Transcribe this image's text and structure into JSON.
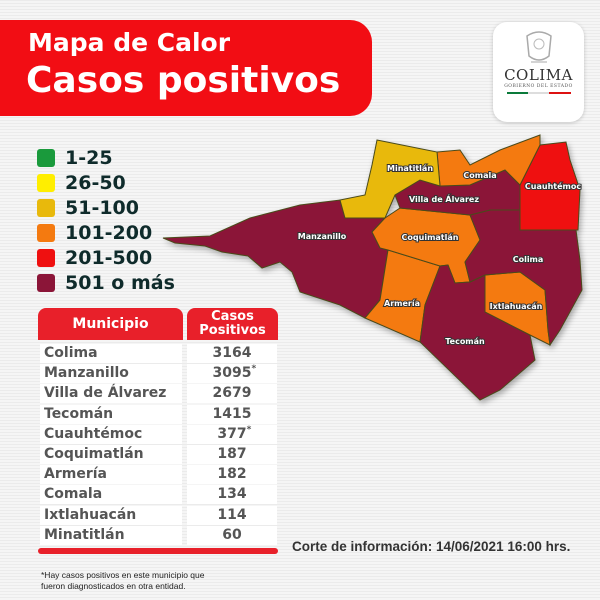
{
  "header": {
    "line1": "Mapa de Calor",
    "line2": "Casos positivos"
  },
  "logo": {
    "name": "COLIMA",
    "subtitle": "GOBIERNO DEL ESTADO"
  },
  "legend": [
    {
      "label": "1-25",
      "color": "#1a9a3c"
    },
    {
      "label": "26-50",
      "color": "#ffee00"
    },
    {
      "label": "51-100",
      "color": "#e8b90c"
    },
    {
      "label": "101-200",
      "color": "#f47a10"
    },
    {
      "label": "201-500",
      "color": "#ef1010"
    },
    {
      "label": "501 o más",
      "color": "#8b1538"
    }
  ],
  "table": {
    "col1": "Municipio",
    "col2a": "Casos",
    "col2b": "Positivos",
    "rows": [
      {
        "name": "Colima",
        "value": "3164",
        "star": ""
      },
      {
        "name": "Manzanillo",
        "value": "3095",
        "star": "*"
      },
      {
        "name": "Villa de Álvarez",
        "value": "2679",
        "star": ""
      },
      {
        "name": "Tecomán",
        "value": "1415",
        "star": ""
      },
      {
        "name": "Cuauhtémoc",
        "value": "377",
        "star": "*"
      },
      {
        "name": "Coquimatlán",
        "value": "187",
        "star": ""
      },
      {
        "name": "Armería",
        "value": "182",
        "star": ""
      },
      {
        "name": "Comala",
        "value": "134",
        "star": ""
      },
      {
        "name": "Ixtlahuacán",
        "value": "114",
        "star": ""
      },
      {
        "name": "Minatitlán",
        "value": "60",
        "star": ""
      }
    ]
  },
  "map": {
    "municipios": [
      {
        "name": "Manzanillo",
        "color": "#8b1538"
      },
      {
        "name": "Armería",
        "color": "#f47a10"
      },
      {
        "name": "Coquimatlán",
        "color": "#f47a10"
      },
      {
        "name": "Tecomán",
        "color": "#8b1538"
      },
      {
        "name": "Ixtlahuacán",
        "color": "#f47a10"
      },
      {
        "name": "Colima",
        "color": "#8b1538"
      },
      {
        "name": "Cuauhtémoc",
        "color": "#ef1010"
      },
      {
        "name": "Villa de Álvarez",
        "color": "#8b1538"
      },
      {
        "name": "Comala",
        "color": "#f47a10"
      },
      {
        "name": "Minatitlán",
        "color": "#e8b90c"
      }
    ]
  },
  "footnote": {
    "line1": "*Hay casos positivos en este municipio que",
    "line2": "fueron diagnosticados en otra entidad."
  },
  "corte": "Corte de información: 14/06/2021 16:00 hrs."
}
